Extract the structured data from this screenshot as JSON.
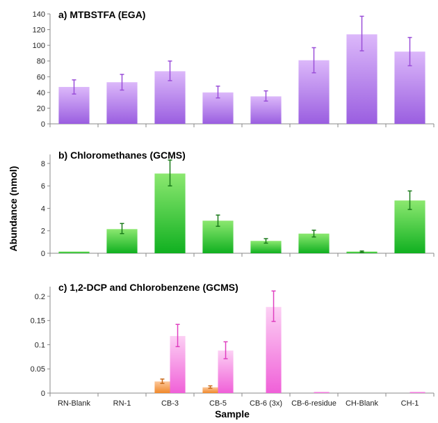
{
  "chart_data": [
    {
      "type": "bar",
      "title": "a) MTBSTFA (EGA)",
      "categories": [
        "RN-Blank",
        "RN-1",
        "CB-3",
        "CB-5",
        "CB-6 (3x)",
        "CB-6-residue",
        "CH-Blank",
        "CH-1"
      ],
      "ylim": [
        0,
        140
      ],
      "yticks": [
        0,
        20,
        40,
        60,
        80,
        100,
        120,
        140
      ],
      "ytick_labels": [
        "0",
        "20",
        "40",
        "60",
        "80",
        "100",
        "120",
        "140"
      ],
      "series": [
        {
          "values": [
            47,
            53,
            67,
            40,
            35,
            81,
            114,
            92
          ],
          "err_low": [
            38,
            43,
            55,
            33,
            29,
            65,
            93,
            74
          ],
          "err_high": [
            56,
            63,
            80,
            48,
            42,
            97,
            137,
            110
          ],
          "color_top": "#dcb8fa",
          "color_bottom": "#9a5ee0",
          "err_color": "#9a4ed8"
        }
      ]
    },
    {
      "type": "bar",
      "title": "b) Chloromethanes (GCMS)",
      "categories": [
        "RN-Blank",
        "RN-1",
        "CB-3",
        "CB-5",
        "CB-6 (3x)",
        "CB-6-residue",
        "CH-Blank",
        "CH-1"
      ],
      "ylim": [
        0,
        8.8
      ],
      "yticks": [
        0,
        2,
        4,
        6,
        8
      ],
      "ytick_labels": [
        "0",
        "2",
        "4",
        "6",
        "8"
      ],
      "series": [
        {
          "values": [
            0.15,
            2.15,
            7.1,
            2.9,
            1.1,
            1.75,
            0.15,
            4.7
          ],
          "err_low": [
            0.15,
            1.75,
            6.0,
            2.4,
            0.9,
            1.45,
            0.08,
            3.9
          ],
          "err_high": [
            0.15,
            2.65,
            8.3,
            3.4,
            1.3,
            2.05,
            0.2,
            5.55
          ],
          "color_top": "#8ce870",
          "color_bottom": "#10b020",
          "err_color": "#1a7a1a"
        }
      ]
    },
    {
      "type": "bar",
      "title": "c) 1,2-DCP and Chlorobenzene (GCMS)",
      "categories": [
        "RN-Blank",
        "RN-1",
        "CB-3",
        "CB-5",
        "CB-6 (3x)",
        "CB-6-residue",
        "CH-Blank",
        "CH-1"
      ],
      "ylim": [
        0,
        0.22
      ],
      "yticks": [
        0,
        0.05,
        0.1,
        0.15,
        0.2
      ],
      "ytick_labels": [
        "0",
        "0.05",
        "0.1",
        "0.15",
        "0.2"
      ],
      "xlabel": "Sample",
      "series": [
        {
          "values": [
            0,
            0,
            0.024,
            0.012,
            0,
            0,
            0,
            0
          ],
          "err_low": [
            0,
            0,
            0.02,
            0.01,
            0,
            0,
            0,
            0
          ],
          "err_high": [
            0,
            0,
            0.029,
            0.015,
            0,
            0,
            0,
            0
          ],
          "color_top": "#fcc79a",
          "color_bottom": "#f0882a",
          "err_color": "#c96a1a"
        },
        {
          "values": [
            0,
            0,
            0.118,
            0.088,
            0.178,
            0.001,
            0,
            0.001
          ],
          "err_low": [
            0,
            0,
            0.096,
            0.071,
            0.148,
            0.001,
            0,
            0.001
          ],
          "err_high": [
            0,
            0,
            0.142,
            0.106,
            0.211,
            0.001,
            0,
            0.001
          ],
          "color_top": "#fcd0f4",
          "color_bottom": "#f060d8",
          "err_color": "#e040c0"
        }
      ]
    }
  ],
  "shared_ylabel": "Abundance (nmol)"
}
